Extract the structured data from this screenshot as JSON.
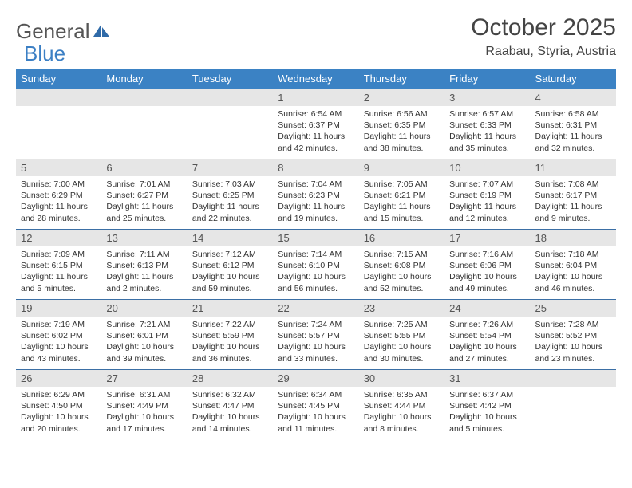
{
  "logo": {
    "text1": "General",
    "text2": "Blue"
  },
  "title": "October 2025",
  "location": "Raabau, Styria, Austria",
  "colors": {
    "header_bg": "#3b82c4",
    "band_bg": "#e6e6e6",
    "band_border": "#3b6fa5",
    "logo_gray": "#555555",
    "logo_blue": "#3b7fc4"
  },
  "dow": [
    "Sunday",
    "Monday",
    "Tuesday",
    "Wednesday",
    "Thursday",
    "Friday",
    "Saturday"
  ],
  "weeks": [
    [
      {
        "n": "",
        "l": []
      },
      {
        "n": "",
        "l": []
      },
      {
        "n": "",
        "l": []
      },
      {
        "n": "1",
        "l": [
          "Sunrise: 6:54 AM",
          "Sunset: 6:37 PM",
          "Daylight: 11 hours and 42 minutes."
        ]
      },
      {
        "n": "2",
        "l": [
          "Sunrise: 6:56 AM",
          "Sunset: 6:35 PM",
          "Daylight: 11 hours and 38 minutes."
        ]
      },
      {
        "n": "3",
        "l": [
          "Sunrise: 6:57 AM",
          "Sunset: 6:33 PM",
          "Daylight: 11 hours and 35 minutes."
        ]
      },
      {
        "n": "4",
        "l": [
          "Sunrise: 6:58 AM",
          "Sunset: 6:31 PM",
          "Daylight: 11 hours and 32 minutes."
        ]
      }
    ],
    [
      {
        "n": "5",
        "l": [
          "Sunrise: 7:00 AM",
          "Sunset: 6:29 PM",
          "Daylight: 11 hours and 28 minutes."
        ]
      },
      {
        "n": "6",
        "l": [
          "Sunrise: 7:01 AM",
          "Sunset: 6:27 PM",
          "Daylight: 11 hours and 25 minutes."
        ]
      },
      {
        "n": "7",
        "l": [
          "Sunrise: 7:03 AM",
          "Sunset: 6:25 PM",
          "Daylight: 11 hours and 22 minutes."
        ]
      },
      {
        "n": "8",
        "l": [
          "Sunrise: 7:04 AM",
          "Sunset: 6:23 PM",
          "Daylight: 11 hours and 19 minutes."
        ]
      },
      {
        "n": "9",
        "l": [
          "Sunrise: 7:05 AM",
          "Sunset: 6:21 PM",
          "Daylight: 11 hours and 15 minutes."
        ]
      },
      {
        "n": "10",
        "l": [
          "Sunrise: 7:07 AM",
          "Sunset: 6:19 PM",
          "Daylight: 11 hours and 12 minutes."
        ]
      },
      {
        "n": "11",
        "l": [
          "Sunrise: 7:08 AM",
          "Sunset: 6:17 PM",
          "Daylight: 11 hours and 9 minutes."
        ]
      }
    ],
    [
      {
        "n": "12",
        "l": [
          "Sunrise: 7:09 AM",
          "Sunset: 6:15 PM",
          "Daylight: 11 hours and 5 minutes."
        ]
      },
      {
        "n": "13",
        "l": [
          "Sunrise: 7:11 AM",
          "Sunset: 6:13 PM",
          "Daylight: 11 hours and 2 minutes."
        ]
      },
      {
        "n": "14",
        "l": [
          "Sunrise: 7:12 AM",
          "Sunset: 6:12 PM",
          "Daylight: 10 hours and 59 minutes."
        ]
      },
      {
        "n": "15",
        "l": [
          "Sunrise: 7:14 AM",
          "Sunset: 6:10 PM",
          "Daylight: 10 hours and 56 minutes."
        ]
      },
      {
        "n": "16",
        "l": [
          "Sunrise: 7:15 AM",
          "Sunset: 6:08 PM",
          "Daylight: 10 hours and 52 minutes."
        ]
      },
      {
        "n": "17",
        "l": [
          "Sunrise: 7:16 AM",
          "Sunset: 6:06 PM",
          "Daylight: 10 hours and 49 minutes."
        ]
      },
      {
        "n": "18",
        "l": [
          "Sunrise: 7:18 AM",
          "Sunset: 6:04 PM",
          "Daylight: 10 hours and 46 minutes."
        ]
      }
    ],
    [
      {
        "n": "19",
        "l": [
          "Sunrise: 7:19 AM",
          "Sunset: 6:02 PM",
          "Daylight: 10 hours and 43 minutes."
        ]
      },
      {
        "n": "20",
        "l": [
          "Sunrise: 7:21 AM",
          "Sunset: 6:01 PM",
          "Daylight: 10 hours and 39 minutes."
        ]
      },
      {
        "n": "21",
        "l": [
          "Sunrise: 7:22 AM",
          "Sunset: 5:59 PM",
          "Daylight: 10 hours and 36 minutes."
        ]
      },
      {
        "n": "22",
        "l": [
          "Sunrise: 7:24 AM",
          "Sunset: 5:57 PM",
          "Daylight: 10 hours and 33 minutes."
        ]
      },
      {
        "n": "23",
        "l": [
          "Sunrise: 7:25 AM",
          "Sunset: 5:55 PM",
          "Daylight: 10 hours and 30 minutes."
        ]
      },
      {
        "n": "24",
        "l": [
          "Sunrise: 7:26 AM",
          "Sunset: 5:54 PM",
          "Daylight: 10 hours and 27 minutes."
        ]
      },
      {
        "n": "25",
        "l": [
          "Sunrise: 7:28 AM",
          "Sunset: 5:52 PM",
          "Daylight: 10 hours and 23 minutes."
        ]
      }
    ],
    [
      {
        "n": "26",
        "l": [
          "Sunrise: 6:29 AM",
          "Sunset: 4:50 PM",
          "Daylight: 10 hours and 20 minutes."
        ]
      },
      {
        "n": "27",
        "l": [
          "Sunrise: 6:31 AM",
          "Sunset: 4:49 PM",
          "Daylight: 10 hours and 17 minutes."
        ]
      },
      {
        "n": "28",
        "l": [
          "Sunrise: 6:32 AM",
          "Sunset: 4:47 PM",
          "Daylight: 10 hours and 14 minutes."
        ]
      },
      {
        "n": "29",
        "l": [
          "Sunrise: 6:34 AM",
          "Sunset: 4:45 PM",
          "Daylight: 10 hours and 11 minutes."
        ]
      },
      {
        "n": "30",
        "l": [
          "Sunrise: 6:35 AM",
          "Sunset: 4:44 PM",
          "Daylight: 10 hours and 8 minutes."
        ]
      },
      {
        "n": "31",
        "l": [
          "Sunrise: 6:37 AM",
          "Sunset: 4:42 PM",
          "Daylight: 10 hours and 5 minutes."
        ]
      },
      {
        "n": "",
        "l": []
      }
    ]
  ]
}
